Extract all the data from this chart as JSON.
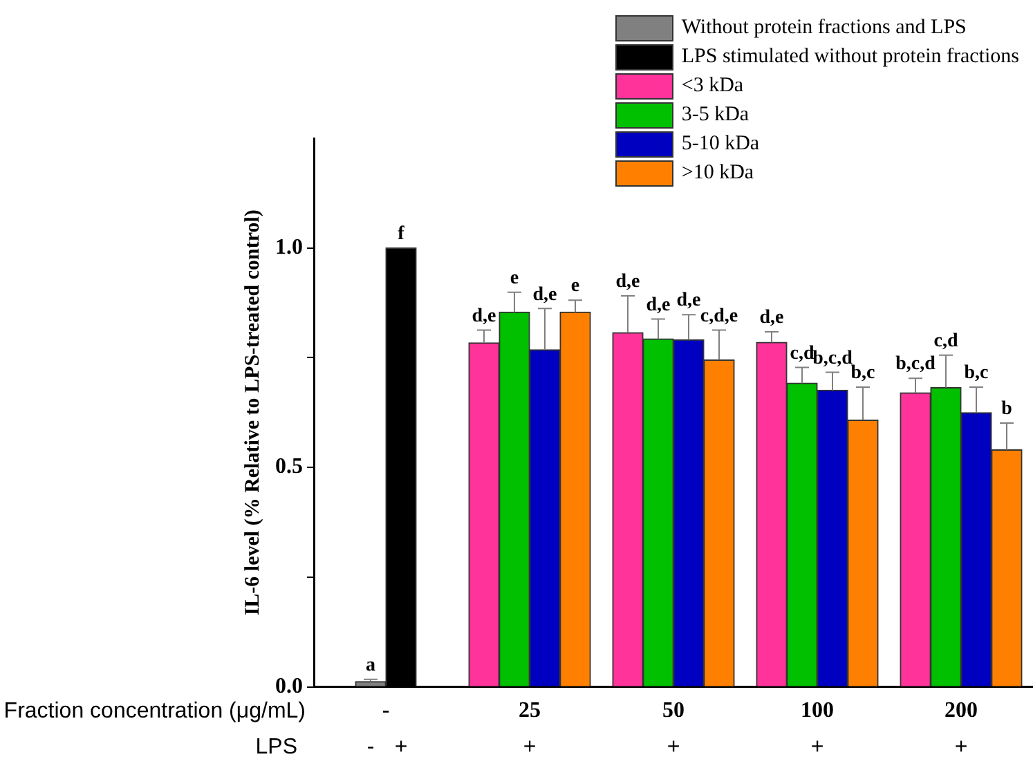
{
  "chart_data": {
    "type": "bar",
    "categories": [
      "-",
      "25",
      "50",
      "100",
      "200"
    ],
    "xlabel": "Fraction concentration (μg/mL)",
    "ylabel": "IL-6 level (% Relative to LPS-treated control)",
    "ylim": [
      0,
      1.25
    ],
    "yticks": [
      {
        "value": 0,
        "label": "0.0"
      },
      {
        "value": 0.25,
        "label": null
      },
      {
        "value": 0.5,
        "label": "0.5"
      },
      {
        "value": 0.75,
        "label": null
      },
      {
        "value": 1.0,
        "label": "1.0"
      }
    ],
    "legend": "top right",
    "grid": false,
    "annotations": [
      "LPS",
      "-",
      "+",
      "+",
      "+",
      "+",
      "+"
    ],
    "series": [
      {
        "name": "Without protein fractions and LPS",
        "color": "#808080",
        "values": [
          0.012,
          null,
          null,
          null,
          null
        ],
        "errors": [
          [
            0.012,
            0.017
          ],
          null,
          null,
          null,
          null
        ],
        "value_labels": [
          "a",
          null,
          null,
          null,
          null
        ]
      },
      {
        "name": "LPS stimulated without protein fractions",
        "color": "#000000",
        "values": [
          1.0,
          null,
          null,
          null,
          null
        ],
        "value_labels": [
          "f",
          null,
          null,
          null,
          null
        ]
      },
      {
        "name": "<3 kDa",
        "color": "#ff3399",
        "values": [
          null,
          0.784,
          0.807,
          0.785,
          0.67
        ],
        "errors": [
          null,
          [
            0.784,
            0.813
          ],
          [
            0.807,
            0.891
          ],
          [
            0.785,
            0.809
          ],
          [
            0.67,
            0.703
          ]
        ],
        "value_labels": [
          null,
          "d,e",
          "d,e",
          "d,e",
          "b,c,d"
        ]
      },
      {
        "name": "3-5 kDa",
        "color": "#00c000",
        "values": [
          null,
          0.854,
          0.793,
          0.692,
          0.682
        ],
        "errors": [
          null,
          [
            0.854,
            0.899
          ],
          [
            0.793,
            0.838
          ],
          [
            0.692,
            0.728
          ],
          [
            0.682,
            0.756
          ]
        ],
        "value_labels": [
          null,
          "e",
          "d,e",
          "c,d",
          "c,d"
        ]
      },
      {
        "name": "5-10 kDa",
        "color": "#0000c0",
        "values": [
          null,
          0.768,
          0.791,
          0.676,
          0.625
        ],
        "errors": [
          null,
          [
            0.768,
            0.862
          ],
          [
            0.791,
            0.848
          ],
          [
            0.676,
            0.717
          ],
          [
            0.625,
            0.683
          ]
        ],
        "value_labels": [
          null,
          "d,e",
          "d,e",
          "b,c,d",
          "b,c"
        ]
      },
      {
        "name": ">10 kDa",
        "color": "#ff8000",
        "values": [
          null,
          0.854,
          0.745,
          0.608,
          0.54
        ],
        "errors": [
          null,
          [
            0.854,
            0.881
          ],
          [
            0.745,
            0.813
          ],
          [
            0.608,
            0.683
          ],
          [
            0.54,
            0.601
          ]
        ],
        "value_labels": [
          null,
          "e",
          "c,d,e",
          "b,c",
          "b"
        ]
      }
    ]
  }
}
